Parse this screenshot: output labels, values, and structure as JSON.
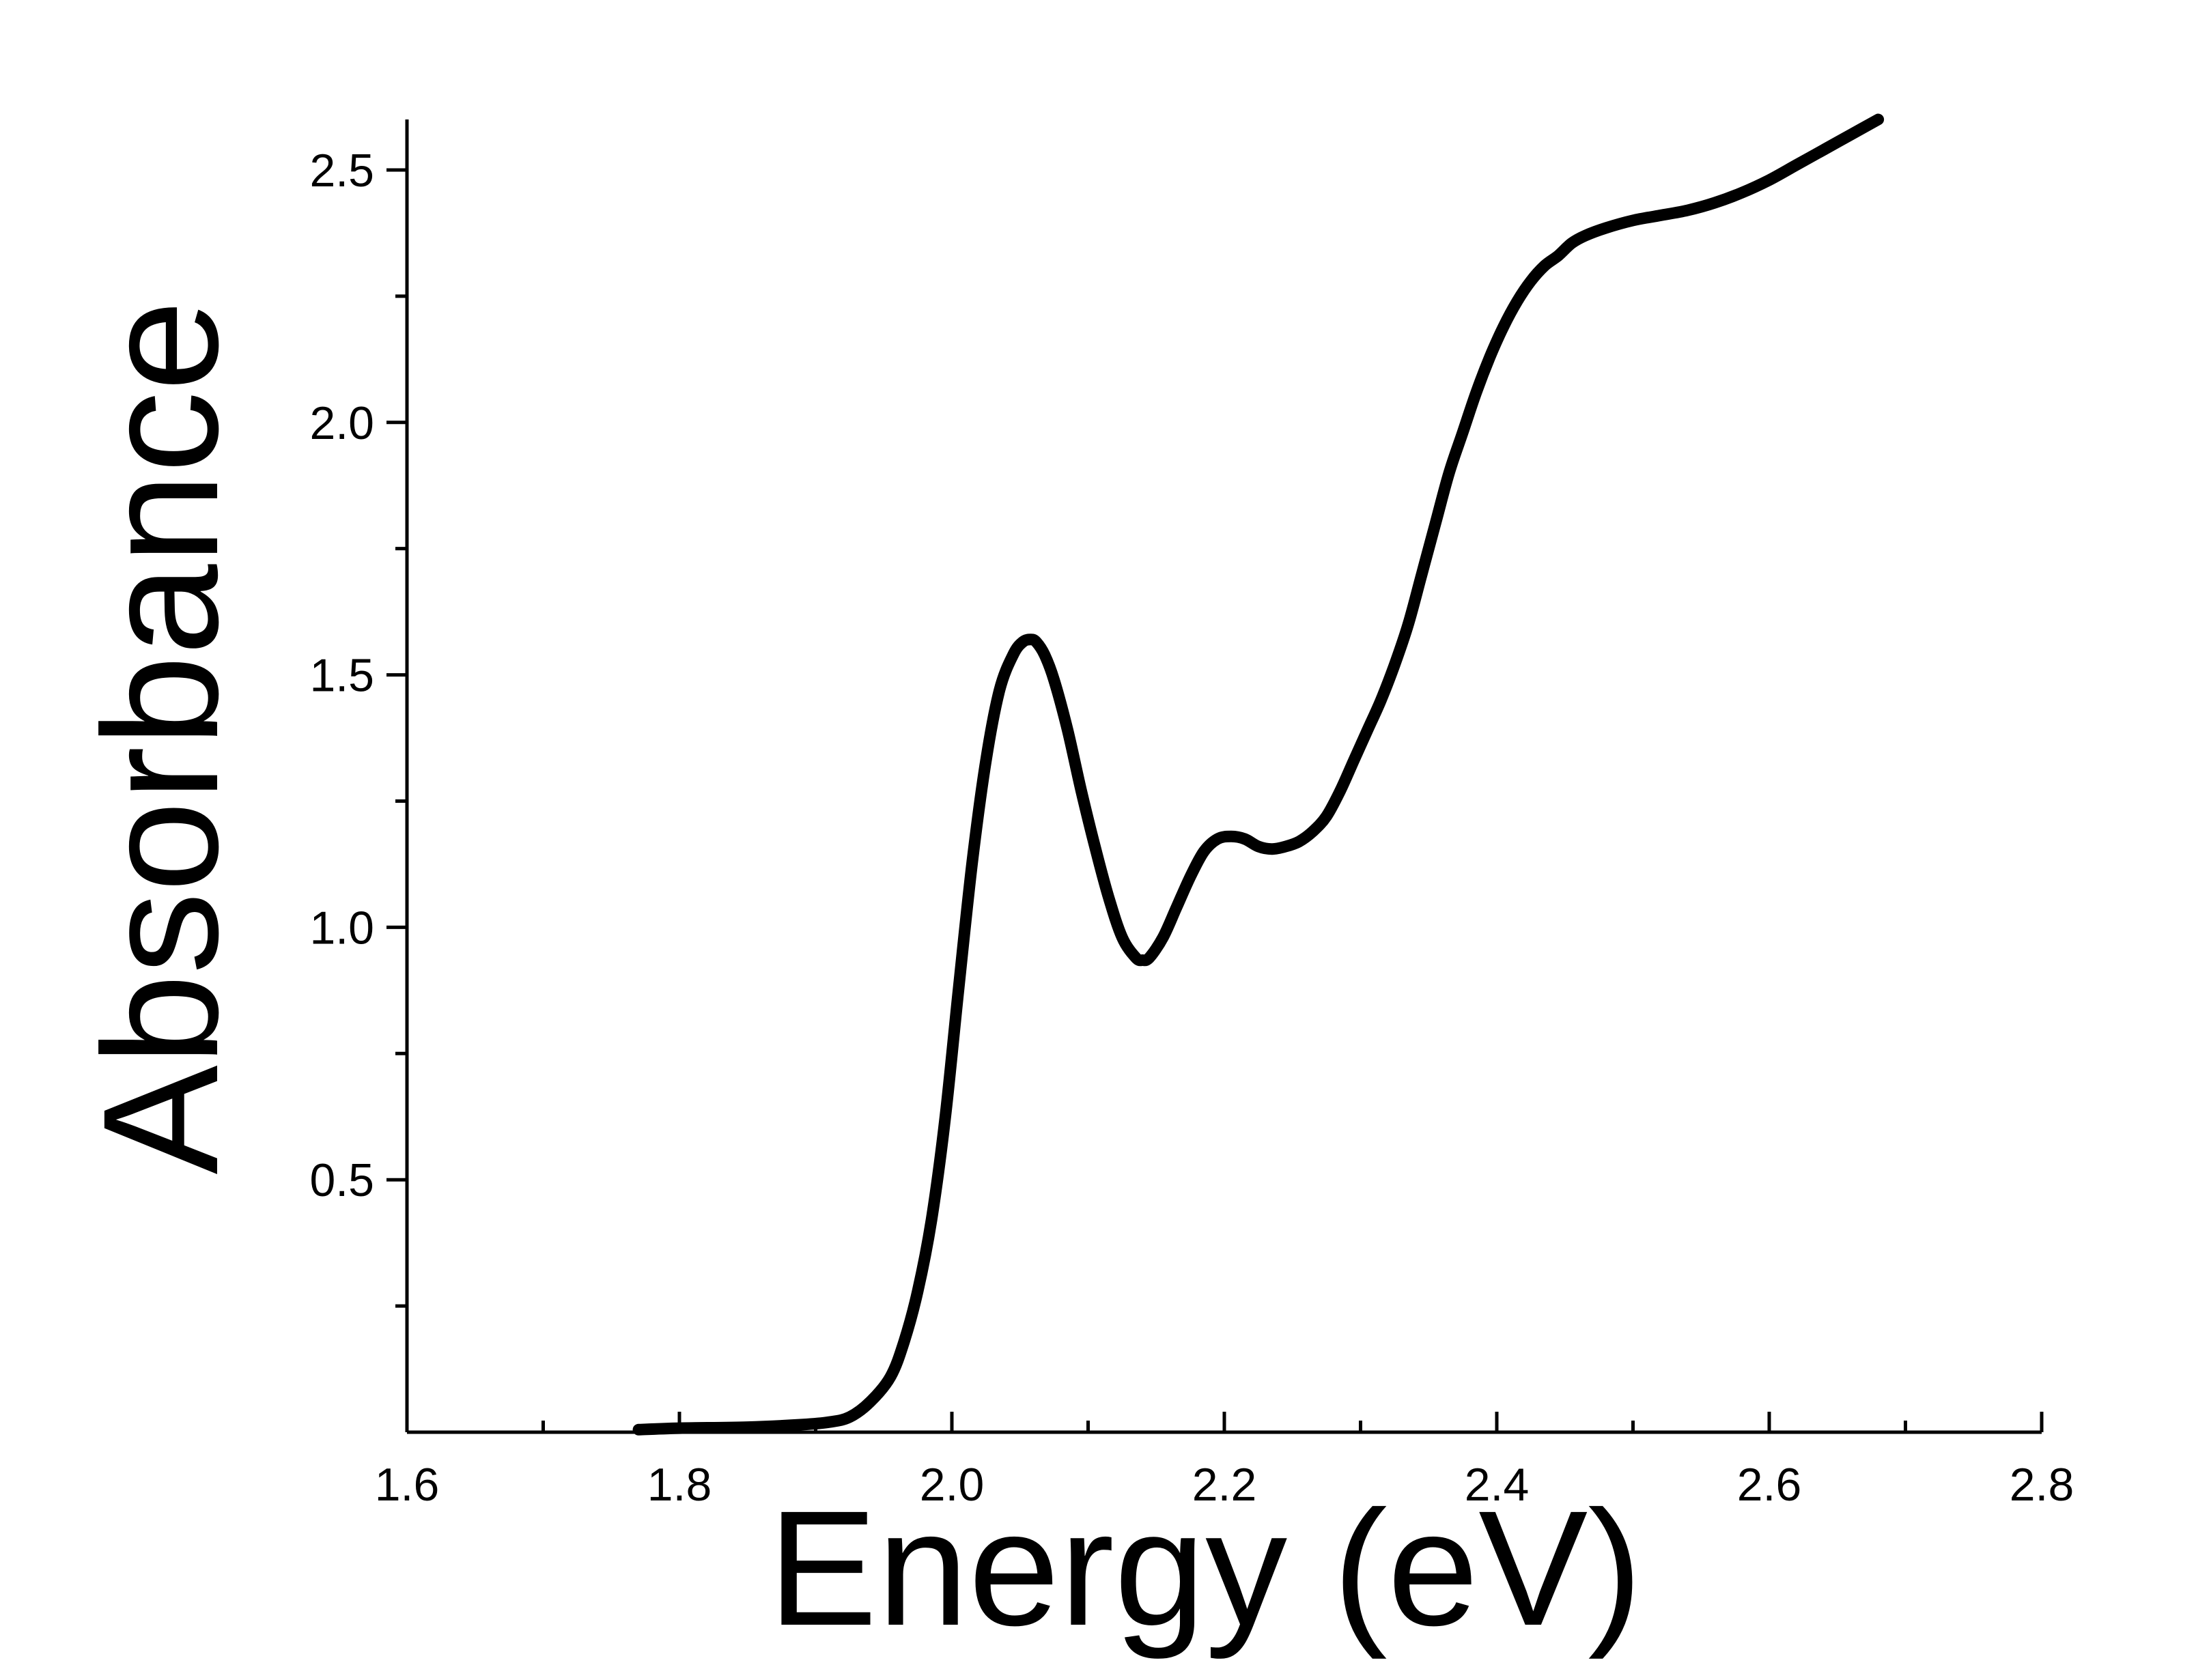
{
  "chart_data": {
    "type": "line",
    "title": "",
    "xlabel": "Energy (eV)",
    "ylabel": "Absorbance",
    "xlim": [
      1.6,
      2.8
    ],
    "ylim": [
      0.0,
      2.6
    ],
    "x_ticks": [
      {
        "value": 1.6,
        "label": "1.6"
      },
      {
        "value": 1.8,
        "label": "1.8"
      },
      {
        "value": 2.0,
        "label": "2.0"
      },
      {
        "value": 2.2,
        "label": "2.2"
      },
      {
        "value": 2.4,
        "label": "2.4"
      },
      {
        "value": 2.6,
        "label": "2.6"
      },
      {
        "value": 2.8,
        "label": "2.8"
      }
    ],
    "x_minor_ticks": [
      1.7,
      1.9,
      2.1,
      2.3,
      2.5,
      2.7
    ],
    "y_ticks": [
      {
        "value": 0.5,
        "label": "0.5"
      },
      {
        "value": 1.0,
        "label": "1.0"
      },
      {
        "value": 1.5,
        "label": "1.5"
      },
      {
        "value": 2.0,
        "label": "2.0"
      },
      {
        "value": 2.5,
        "label": "2.5"
      }
    ],
    "y_minor_ticks": [
      0.25,
      0.75,
      1.25,
      1.75,
      2.25
    ],
    "grid": false,
    "legend": "none",
    "line_color": "#000000",
    "series": [
      {
        "x": [
          1.77,
          1.8,
          1.85,
          1.89,
          1.91,
          1.925,
          1.94,
          1.955,
          1.965,
          1.975,
          1.985,
          1.995,
          2.005,
          2.015,
          2.025,
          2.035,
          2.045,
          2.052,
          2.058,
          2.062,
          2.068,
          2.075,
          2.085,
          2.095,
          2.105,
          2.115,
          2.125,
          2.135,
          2.14,
          2.145,
          2.155,
          2.165,
          2.175,
          2.185,
          2.195,
          2.205,
          2.215,
          2.225,
          2.235,
          2.245,
          2.255,
          2.265,
          2.275,
          2.285,
          2.295,
          2.305,
          2.315,
          2.325,
          2.335,
          2.345,
          2.355,
          2.365,
          2.375,
          2.385,
          2.395,
          2.405,
          2.415,
          2.425,
          2.435,
          2.445,
          2.455,
          2.465,
          2.48,
          2.5,
          2.52,
          2.54,
          2.56,
          2.58,
          2.6,
          2.62,
          2.64,
          2.66,
          2.68
        ],
        "y": [
          0.005,
          0.008,
          0.01,
          0.015,
          0.02,
          0.03,
          0.06,
          0.11,
          0.18,
          0.28,
          0.42,
          0.62,
          0.88,
          1.13,
          1.33,
          1.47,
          1.54,
          1.565,
          1.57,
          1.565,
          1.54,
          1.49,
          1.39,
          1.27,
          1.16,
          1.06,
          0.98,
          0.94,
          0.935,
          0.94,
          0.98,
          1.04,
          1.1,
          1.15,
          1.175,
          1.18,
          1.175,
          1.16,
          1.155,
          1.16,
          1.17,
          1.19,
          1.22,
          1.27,
          1.33,
          1.39,
          1.45,
          1.52,
          1.6,
          1.7,
          1.8,
          1.9,
          1.98,
          2.06,
          2.13,
          2.19,
          2.24,
          2.28,
          2.31,
          2.33,
          2.355,
          2.37,
          2.385,
          2.4,
          2.41,
          2.42,
          2.435,
          2.455,
          2.48,
          2.51,
          2.54,
          2.57,
          2.6
        ]
      }
    ]
  }
}
